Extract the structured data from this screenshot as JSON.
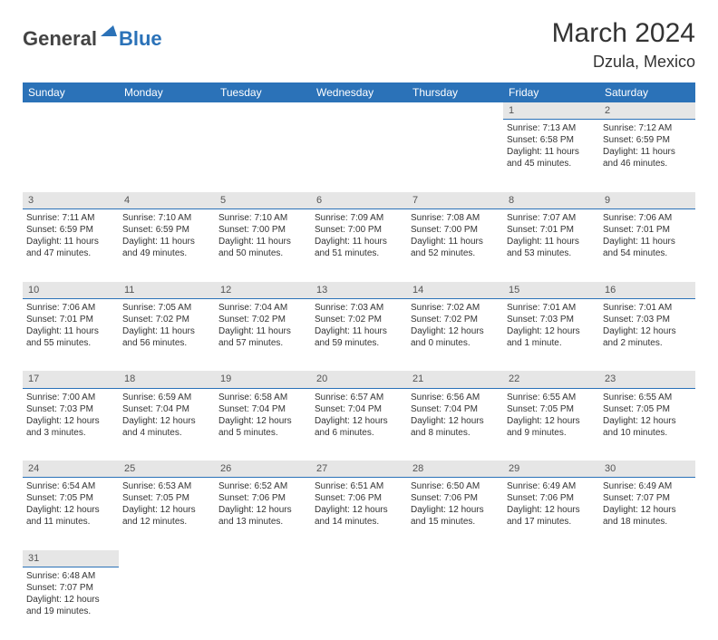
{
  "brand": {
    "part1": "General",
    "part2": "Blue"
  },
  "title": "March 2024",
  "location": "Dzula, Mexico",
  "colors": {
    "header_bg": "#2b72b8",
    "daynum_bg": "#e6e6e6",
    "rule": "#2b72b8"
  },
  "weekdays": [
    "Sunday",
    "Monday",
    "Tuesday",
    "Wednesday",
    "Thursday",
    "Friday",
    "Saturday"
  ],
  "weeks": [
    [
      {
        "day": "",
        "text": ""
      },
      {
        "day": "",
        "text": ""
      },
      {
        "day": "",
        "text": ""
      },
      {
        "day": "",
        "text": ""
      },
      {
        "day": "",
        "text": ""
      },
      {
        "day": "1",
        "text": "Sunrise: 7:13 AM\nSunset: 6:58 PM\nDaylight: 11 hours and 45 minutes."
      },
      {
        "day": "2",
        "text": "Sunrise: 7:12 AM\nSunset: 6:59 PM\nDaylight: 11 hours and 46 minutes."
      }
    ],
    [
      {
        "day": "3",
        "text": "Sunrise: 7:11 AM\nSunset: 6:59 PM\nDaylight: 11 hours and 47 minutes."
      },
      {
        "day": "4",
        "text": "Sunrise: 7:10 AM\nSunset: 6:59 PM\nDaylight: 11 hours and 49 minutes."
      },
      {
        "day": "5",
        "text": "Sunrise: 7:10 AM\nSunset: 7:00 PM\nDaylight: 11 hours and 50 minutes."
      },
      {
        "day": "6",
        "text": "Sunrise: 7:09 AM\nSunset: 7:00 PM\nDaylight: 11 hours and 51 minutes."
      },
      {
        "day": "7",
        "text": "Sunrise: 7:08 AM\nSunset: 7:00 PM\nDaylight: 11 hours and 52 minutes."
      },
      {
        "day": "8",
        "text": "Sunrise: 7:07 AM\nSunset: 7:01 PM\nDaylight: 11 hours and 53 minutes."
      },
      {
        "day": "9",
        "text": "Sunrise: 7:06 AM\nSunset: 7:01 PM\nDaylight: 11 hours and 54 minutes."
      }
    ],
    [
      {
        "day": "10",
        "text": "Sunrise: 7:06 AM\nSunset: 7:01 PM\nDaylight: 11 hours and 55 minutes."
      },
      {
        "day": "11",
        "text": "Sunrise: 7:05 AM\nSunset: 7:02 PM\nDaylight: 11 hours and 56 minutes."
      },
      {
        "day": "12",
        "text": "Sunrise: 7:04 AM\nSunset: 7:02 PM\nDaylight: 11 hours and 57 minutes."
      },
      {
        "day": "13",
        "text": "Sunrise: 7:03 AM\nSunset: 7:02 PM\nDaylight: 11 hours and 59 minutes."
      },
      {
        "day": "14",
        "text": "Sunrise: 7:02 AM\nSunset: 7:02 PM\nDaylight: 12 hours and 0 minutes."
      },
      {
        "day": "15",
        "text": "Sunrise: 7:01 AM\nSunset: 7:03 PM\nDaylight: 12 hours and 1 minute."
      },
      {
        "day": "16",
        "text": "Sunrise: 7:01 AM\nSunset: 7:03 PM\nDaylight: 12 hours and 2 minutes."
      }
    ],
    [
      {
        "day": "17",
        "text": "Sunrise: 7:00 AM\nSunset: 7:03 PM\nDaylight: 12 hours and 3 minutes."
      },
      {
        "day": "18",
        "text": "Sunrise: 6:59 AM\nSunset: 7:04 PM\nDaylight: 12 hours and 4 minutes."
      },
      {
        "day": "19",
        "text": "Sunrise: 6:58 AM\nSunset: 7:04 PM\nDaylight: 12 hours and 5 minutes."
      },
      {
        "day": "20",
        "text": "Sunrise: 6:57 AM\nSunset: 7:04 PM\nDaylight: 12 hours and 6 minutes."
      },
      {
        "day": "21",
        "text": "Sunrise: 6:56 AM\nSunset: 7:04 PM\nDaylight: 12 hours and 8 minutes."
      },
      {
        "day": "22",
        "text": "Sunrise: 6:55 AM\nSunset: 7:05 PM\nDaylight: 12 hours and 9 minutes."
      },
      {
        "day": "23",
        "text": "Sunrise: 6:55 AM\nSunset: 7:05 PM\nDaylight: 12 hours and 10 minutes."
      }
    ],
    [
      {
        "day": "24",
        "text": "Sunrise: 6:54 AM\nSunset: 7:05 PM\nDaylight: 12 hours and 11 minutes."
      },
      {
        "day": "25",
        "text": "Sunrise: 6:53 AM\nSunset: 7:05 PM\nDaylight: 12 hours and 12 minutes."
      },
      {
        "day": "26",
        "text": "Sunrise: 6:52 AM\nSunset: 7:06 PM\nDaylight: 12 hours and 13 minutes."
      },
      {
        "day": "27",
        "text": "Sunrise: 6:51 AM\nSunset: 7:06 PM\nDaylight: 12 hours and 14 minutes."
      },
      {
        "day": "28",
        "text": "Sunrise: 6:50 AM\nSunset: 7:06 PM\nDaylight: 12 hours and 15 minutes."
      },
      {
        "day": "29",
        "text": "Sunrise: 6:49 AM\nSunset: 7:06 PM\nDaylight: 12 hours and 17 minutes."
      },
      {
        "day": "30",
        "text": "Sunrise: 6:49 AM\nSunset: 7:07 PM\nDaylight: 12 hours and 18 minutes."
      }
    ],
    [
      {
        "day": "31",
        "text": "Sunrise: 6:48 AM\nSunset: 7:07 PM\nDaylight: 12 hours and 19 minutes."
      },
      {
        "day": "",
        "text": ""
      },
      {
        "day": "",
        "text": ""
      },
      {
        "day": "",
        "text": ""
      },
      {
        "day": "",
        "text": ""
      },
      {
        "day": "",
        "text": ""
      },
      {
        "day": "",
        "text": ""
      }
    ]
  ]
}
